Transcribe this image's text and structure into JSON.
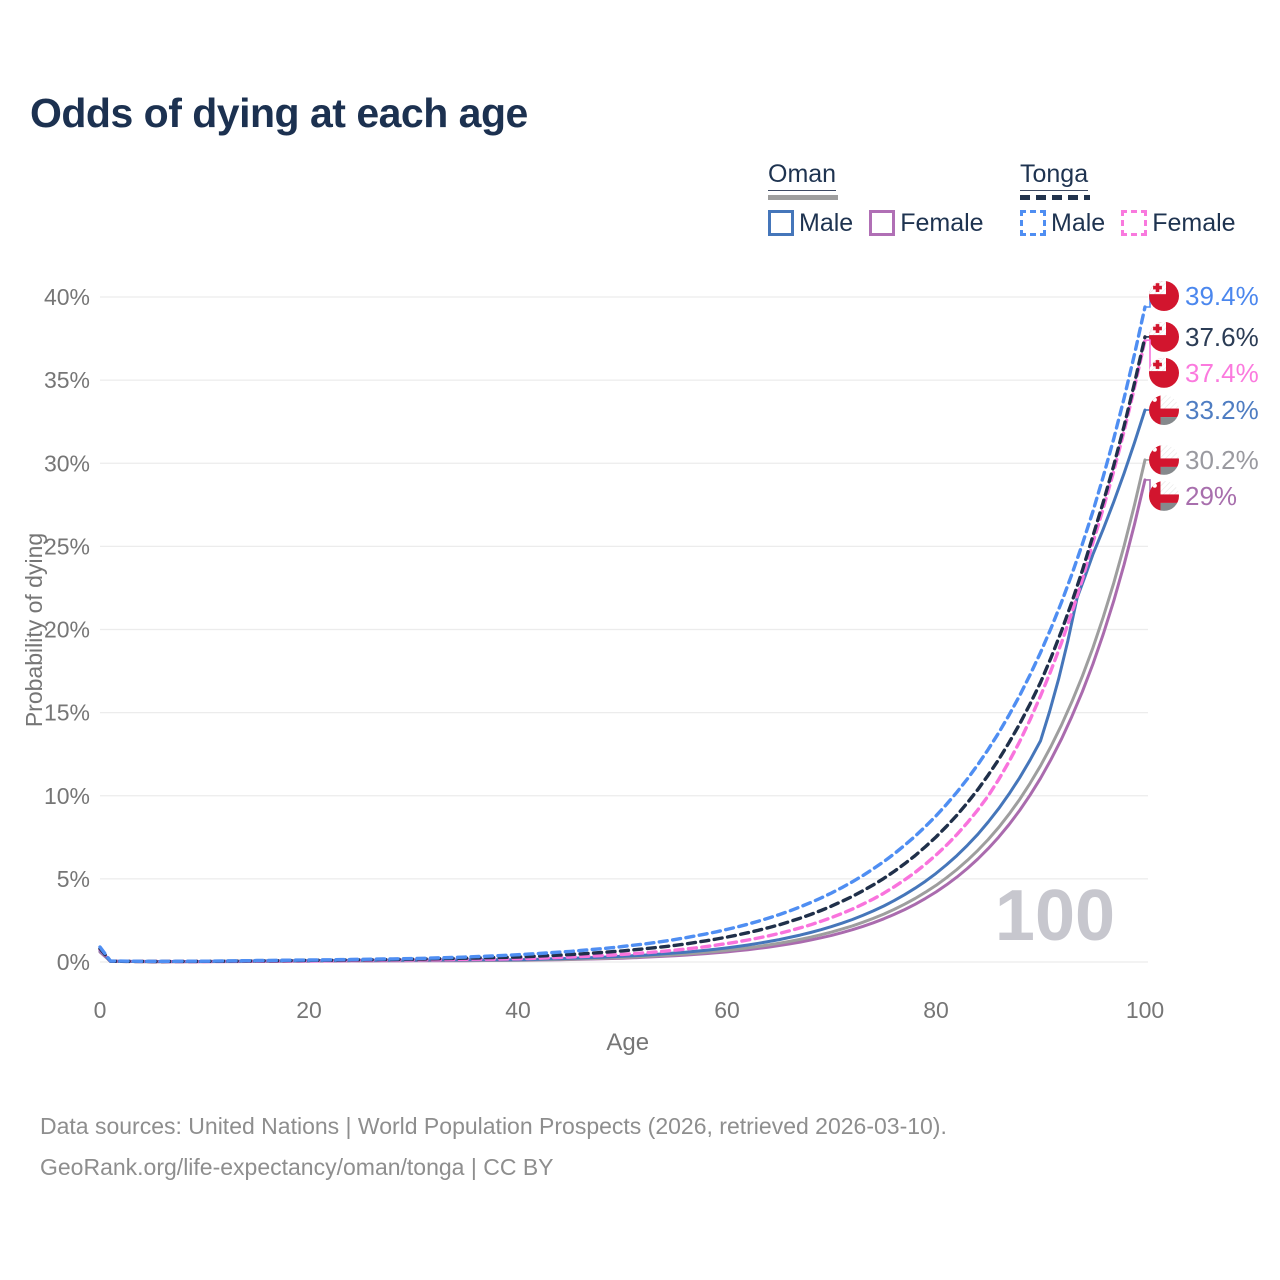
{
  "title": "Odds of dying at each age",
  "legend": {
    "groups": [
      {
        "country": "Oman",
        "line_style": "solid",
        "line_color": "#9e9e9e",
        "items": [
          {
            "label": "Male",
            "color": "#4576ba"
          },
          {
            "label": "Female",
            "color": "#b06fb5"
          }
        ]
      },
      {
        "country": "Tonga",
        "line_style": "dashed",
        "line_color": "#22334d",
        "items": [
          {
            "label": "Male",
            "color": "#4f8ef2"
          },
          {
            "label": "Female",
            "color": "#f979de"
          }
        ]
      }
    ]
  },
  "chart_data": {
    "type": "line",
    "title": "Odds of dying at each age",
    "xlabel": "Age",
    "ylabel": "Probability of dying",
    "xlim": [
      0,
      100
    ],
    "ylim": [
      0,
      40
    ],
    "grid": "horizontal",
    "x_ticks": [
      "0",
      "20",
      "40",
      "60",
      "80",
      "100"
    ],
    "x_tick_values": [
      0,
      20,
      40,
      60,
      80,
      100
    ],
    "y_ticks": [
      "0%",
      "5%",
      "10%",
      "15%",
      "20%",
      "25%",
      "30%",
      "35%",
      "40%"
    ],
    "y_tick_values": [
      0,
      5,
      10,
      15,
      20,
      25,
      30,
      35,
      40
    ],
    "unit": "%",
    "series": [
      {
        "id": "tonga-male",
        "country": "Tonga",
        "sex": "Male",
        "color": "#4f8ef2",
        "label_color": "#4b87ee",
        "dash": true,
        "end_label": "39.4%",
        "end_value": 39.4,
        "flag": "tonga",
        "points": [
          [
            0,
            0.9
          ],
          [
            1,
            0.06
          ],
          [
            5,
            0.04
          ],
          [
            10,
            0.05
          ],
          [
            15,
            0.09
          ],
          [
            20,
            0.12
          ],
          [
            25,
            0.16
          ],
          [
            30,
            0.21
          ],
          [
            35,
            0.3
          ],
          [
            40,
            0.44
          ],
          [
            45,
            0.64
          ],
          [
            50,
            0.93
          ],
          [
            55,
            1.35
          ],
          [
            60,
            1.96
          ],
          [
            65,
            2.85
          ],
          [
            70,
            4.15
          ],
          [
            75,
            6.04
          ],
          [
            80,
            8.79
          ],
          [
            85,
            12.79
          ],
          [
            90,
            18.61
          ],
          [
            95,
            27.08
          ],
          [
            100,
            39.4
          ]
        ]
      },
      {
        "id": "tonga-both",
        "country": "Tonga",
        "sex": "Both sexes",
        "color": "#20304a",
        "label_color": "#2b3c55",
        "dash": true,
        "end_label": "37.6%",
        "end_value": 37.6,
        "flag": "tonga",
        "points": [
          [
            0,
            0.8
          ],
          [
            1,
            0.05
          ],
          [
            5,
            0.03
          ],
          [
            10,
            0.04
          ],
          [
            15,
            0.07
          ],
          [
            20,
            0.1
          ],
          [
            25,
            0.13
          ],
          [
            30,
            0.17
          ],
          [
            35,
            0.23
          ],
          [
            40,
            0.3
          ],
          [
            45,
            0.45
          ],
          [
            50,
            0.67
          ],
          [
            55,
            1.0
          ],
          [
            60,
            1.5
          ],
          [
            65,
            2.24
          ],
          [
            70,
            3.36
          ],
          [
            75,
            5.03
          ],
          [
            80,
            7.52
          ],
          [
            85,
            11.24
          ],
          [
            90,
            16.81
          ],
          [
            95,
            25.6
          ],
          [
            100,
            37.6
          ]
        ]
      },
      {
        "id": "tonga-female",
        "country": "Tonga",
        "sex": "Female",
        "color": "#f973dd",
        "label_color": "#fb7ade",
        "dash": true,
        "end_label": "37.4%",
        "end_value": 37.4,
        "flag": "tonga",
        "points": [
          [
            0,
            0.75
          ],
          [
            1,
            0.05
          ],
          [
            5,
            0.03
          ],
          [
            10,
            0.03
          ],
          [
            15,
            0.05
          ],
          [
            20,
            0.07
          ],
          [
            25,
            0.1
          ],
          [
            30,
            0.13
          ],
          [
            35,
            0.16
          ],
          [
            40,
            0.19
          ],
          [
            45,
            0.3
          ],
          [
            50,
            0.46
          ],
          [
            55,
            0.71
          ],
          [
            60,
            1.11
          ],
          [
            65,
            1.72
          ],
          [
            70,
            2.67
          ],
          [
            75,
            4.14
          ],
          [
            80,
            6.43
          ],
          [
            85,
            9.99
          ],
          [
            90,
            16.0
          ],
          [
            95,
            25.2
          ],
          [
            100,
            37.4
          ]
        ]
      },
      {
        "id": "oman-male",
        "country": "Oman",
        "sex": "Male",
        "color": "#4576ba",
        "label_color": "#4f7dc2",
        "dash": false,
        "end_label": "33.2%",
        "end_value": 33.2,
        "flag": "oman",
        "points": [
          [
            0,
            0.7
          ],
          [
            1,
            0.05
          ],
          [
            5,
            0.03
          ],
          [
            10,
            0.03
          ],
          [
            15,
            0.06
          ],
          [
            20,
            0.08
          ],
          [
            25,
            0.1
          ],
          [
            30,
            0.12
          ],
          [
            35,
            0.13
          ],
          [
            40,
            0.14
          ],
          [
            45,
            0.22
          ],
          [
            50,
            0.34
          ],
          [
            55,
            0.54
          ],
          [
            60,
            0.85
          ],
          [
            65,
            1.35
          ],
          [
            70,
            2.13
          ],
          [
            75,
            3.37
          ],
          [
            80,
            5.33
          ],
          [
            85,
            8.42
          ],
          [
            90,
            13.3
          ],
          [
            93.5,
            21.9
          ],
          [
            95,
            24.5
          ],
          [
            100,
            33.2
          ]
        ]
      },
      {
        "id": "oman-both",
        "country": "Oman",
        "sex": "Both sexes",
        "color": "#9e9e9e",
        "label_color": "#9a9aa0",
        "dash": false,
        "end_label": "30.2%",
        "end_value": 30.2,
        "flag": "oman",
        "points": [
          [
            0,
            0.65
          ],
          [
            1,
            0.04
          ],
          [
            5,
            0.02
          ],
          [
            10,
            0.03
          ],
          [
            15,
            0.05
          ],
          [
            20,
            0.07
          ],
          [
            25,
            0.08
          ],
          [
            30,
            0.1
          ],
          [
            35,
            0.11
          ],
          [
            40,
            0.11
          ],
          [
            45,
            0.17
          ],
          [
            50,
            0.27
          ],
          [
            55,
            0.44
          ],
          [
            60,
            0.7
          ],
          [
            65,
            1.13
          ],
          [
            70,
            1.8
          ],
          [
            75,
            2.88
          ],
          [
            80,
            4.61
          ],
          [
            85,
            7.37
          ],
          [
            90,
            11.8
          ],
          [
            95,
            18.88
          ],
          [
            100,
            30.2
          ]
        ]
      },
      {
        "id": "oman-female",
        "country": "Oman",
        "sex": "Female",
        "color": "#aa6bae",
        "label_color": "#a86fad",
        "dash": false,
        "end_label": "29%",
        "end_value": 29,
        "flag": "oman",
        "points": [
          [
            0,
            0.6
          ],
          [
            1,
            0.04
          ],
          [
            5,
            0.02
          ],
          [
            10,
            0.02
          ],
          [
            15,
            0.03
          ],
          [
            20,
            0.05
          ],
          [
            25,
            0.06
          ],
          [
            30,
            0.07
          ],
          [
            35,
            0.08
          ],
          [
            40,
            0.1
          ],
          [
            45,
            0.15
          ],
          [
            50,
            0.23
          ],
          [
            55,
            0.38
          ],
          [
            60,
            0.61
          ],
          [
            65,
            0.99
          ],
          [
            70,
            1.6
          ],
          [
            75,
            2.6
          ],
          [
            80,
            4.21
          ],
          [
            85,
            6.82
          ],
          [
            90,
            11.05
          ],
          [
            95,
            17.9
          ],
          [
            100,
            29.0
          ]
        ]
      }
    ],
    "flag_colors": {
      "red": "#d2152e",
      "white": "#ffffff",
      "oman_bottom_band": "#85898c"
    },
    "annotations": {
      "watermark": "100"
    },
    "legend_position": "top-right"
  },
  "axis_style": {
    "tick_color": "#767676",
    "grid_color": "#ececec",
    "watermark_color": "#c7c7ce"
  },
  "footer": {
    "line1": "Data sources: United Nations | World Population Prospects (2026, retrieved 2026-03-10).",
    "line2": "GeoRank.org/life-expectancy/oman/tonga | CC BY"
  }
}
